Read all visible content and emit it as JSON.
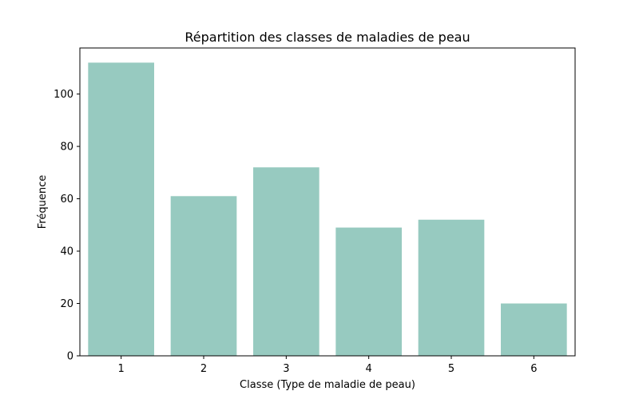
{
  "chart_data": {
    "type": "bar",
    "title": "Répartition des classes de maladies de peau",
    "xlabel": "Classe (Type de maladie de peau)",
    "ylabel": "Fréquence",
    "categories": [
      "1",
      "2",
      "3",
      "4",
      "5",
      "6"
    ],
    "values": [
      112,
      61,
      72,
      49,
      52,
      20
    ],
    "ylim": [
      0,
      117.6
    ],
    "yticks": [
      0,
      20,
      40,
      60,
      80,
      100
    ],
    "grid": false,
    "legend": "none",
    "bar_color": "#97cac0"
  }
}
